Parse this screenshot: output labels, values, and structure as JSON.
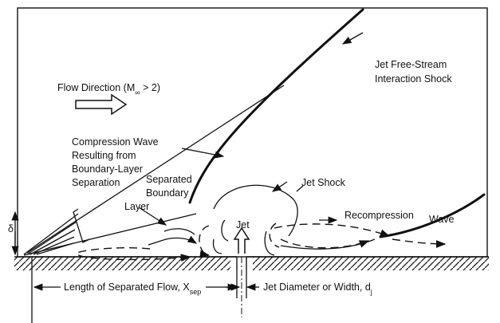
{
  "labels": {
    "flow_direction": "Flow Direction (M",
    "flow_sub": "∞",
    "flow_cond": " > 2)",
    "jet_freestream_1": "Jet Free-Stream",
    "jet_freestream_2": "Interaction Shock",
    "compression_1": "Compression Wave",
    "compression_2": "Resulting from",
    "compression_3": "Boundary-Layer",
    "compression_4": "Separation",
    "separated_1": "Separated",
    "separated_2": "Boundary",
    "separated_3": "Layer",
    "jet_shock": "Jet Shock",
    "recompression": "Recompression",
    "wave": "Wave",
    "jet": "Jet",
    "delta": "δ",
    "length_main": "Length of Separated Flow, X",
    "length_sub": "sep",
    "diameter_main": "Jet Diameter or Width, d",
    "diameter_sub": "j"
  }
}
